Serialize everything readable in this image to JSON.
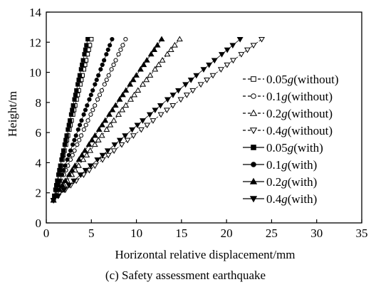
{
  "chart_data": {
    "type": "line",
    "title": "",
    "caption": "(c) Safety assessment earthquake",
    "xlabel": "Horizontal relative displacement/mm",
    "ylabel": "Height/m",
    "xlim": [
      0,
      35
    ],
    "ylim": [
      0,
      14
    ],
    "xticks": [
      0,
      5,
      10,
      15,
      20,
      25,
      30,
      35
    ],
    "yticks": [
      0,
      2,
      4,
      6,
      8,
      10,
      12,
      14
    ],
    "grid": false,
    "legend_position": "right",
    "y": [
      1.5,
      1.8,
      2.2,
      2.5,
      2.8,
      3.2,
      3.5,
      3.8,
      4.2,
      4.5,
      4.8,
      5.2,
      5.5,
      5.8,
      6.2,
      6.5,
      6.8,
      7.2,
      7.5,
      7.8,
      8.2,
      8.5,
      8.8,
      9.2,
      9.5,
      9.8,
      10.2,
      10.5,
      10.8,
      11.2,
      11.5,
      11.8,
      12.2
    ],
    "series": [
      {
        "name": "0.05g(without)",
        "prefix": "0.05",
        "suffix": "(without)",
        "marker": "square",
        "filled": false,
        "dash": true,
        "x_end": 5.0
      },
      {
        "name": "0.1g(without)",
        "prefix": "0.1",
        "suffix": "(without)",
        "marker": "circle",
        "filled": false,
        "dash": true,
        "x_end": 8.8
      },
      {
        "name": "0.2g(without)",
        "prefix": "0.2",
        "suffix": "(without)",
        "marker": "triangle-up",
        "filled": false,
        "dash": true,
        "x_end": 14.8
      },
      {
        "name": "0.4g(without)",
        "prefix": "0.4",
        "suffix": "(without)",
        "marker": "triangle-down",
        "filled": false,
        "dash": true,
        "x_end": 23.9
      },
      {
        "name": "0.05g(with)",
        "prefix": "0.05",
        "suffix": "(with)",
        "marker": "square",
        "filled": true,
        "dash": false,
        "x_end": 4.6
      },
      {
        "name": "0.1g(with)",
        "prefix": "0.1",
        "suffix": "(with)",
        "marker": "circle",
        "filled": true,
        "dash": false,
        "x_end": 7.3
      },
      {
        "name": "0.2g(with)",
        "prefix": "0.2",
        "suffix": "(with)",
        "marker": "triangle-up",
        "filled": true,
        "dash": false,
        "x_end": 12.8
      },
      {
        "name": "0.4g(with)",
        "prefix": "0.4",
        "suffix": "(with)",
        "marker": "triangle-down",
        "filled": true,
        "dash": false,
        "x_end": 21.5
      }
    ]
  }
}
